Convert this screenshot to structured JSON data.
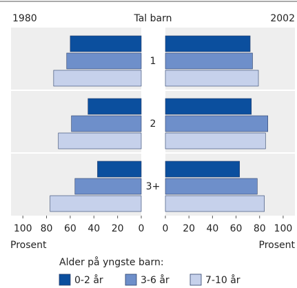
{
  "chart_data": {
    "type": "butterfly",
    "center_label": "Tal barn",
    "categories": [
      "1",
      "2",
      "3+"
    ],
    "series": [
      {
        "name": "0-2 år",
        "color": "#0b4f9e"
      },
      {
        "name": "3-6 år",
        "color": "#6e8fca"
      },
      {
        "name": "7-10 år",
        "color": "#c6d1eb"
      }
    ],
    "panels": [
      {
        "title": "1980",
        "values": [
          [
            60,
            45,
            37
          ],
          [
            63,
            59,
            56
          ],
          [
            74,
            70,
            77
          ]
        ]
      },
      {
        "title": "2002",
        "values": [
          [
            72,
            73,
            63
          ],
          [
            74,
            87,
            78
          ],
          [
            79,
            85,
            84
          ]
        ]
      }
    ],
    "xlim": [
      0,
      110
    ],
    "xticks": [
      0,
      20,
      40,
      60,
      80,
      100
    ],
    "xlabel": "Prosent",
    "legend_title": "Alder på yngste barn:"
  }
}
